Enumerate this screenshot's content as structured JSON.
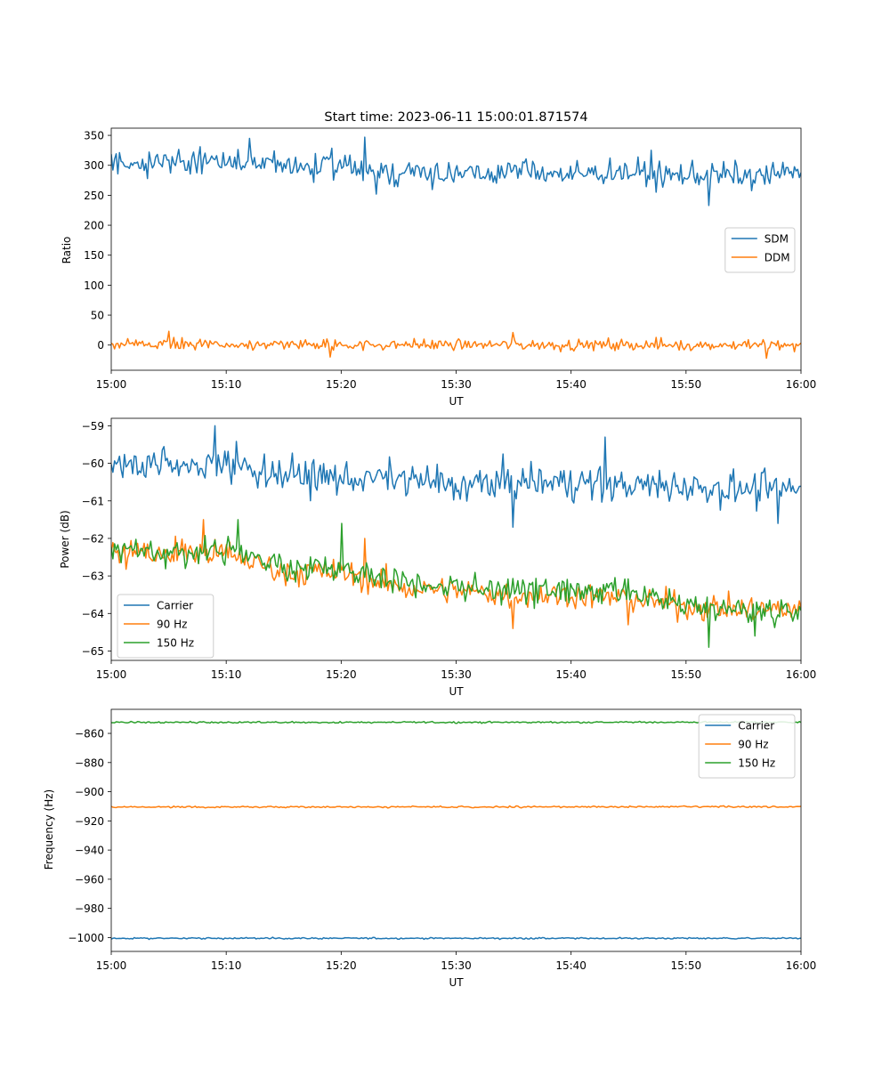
{
  "figure": {
    "title": "Start time: 2023-06-11 15:00:01.871574"
  },
  "colors": {
    "blue": "#1f77b4",
    "orange": "#ff7f0e",
    "green": "#2ca02c"
  },
  "chart_data": [
    {
      "type": "line",
      "title": "Start time: 2023-06-11 15:00:01.871574",
      "xlabel": "UT",
      "ylabel": "Ratio",
      "xlim": [
        "15:00",
        "16:00"
      ],
      "ylim": [
        -42,
        362
      ],
      "x_ticks": [
        "15:00",
        "15:10",
        "15:20",
        "15:30",
        "15:40",
        "15:50",
        "16:00"
      ],
      "y_ticks": [
        0,
        50,
        100,
        150,
        200,
        250,
        300,
        350
      ],
      "y_tick_labels": [
        "0",
        "50",
        "100",
        "150",
        "200",
        "250",
        "300",
        "350"
      ],
      "grid": false,
      "legend_position": "center-right",
      "series": [
        {
          "name": "SDM",
          "color": "#1f77b4",
          "anchor_x": [
            "15:00",
            "15:04",
            "15:08",
            "15:12",
            "15:16",
            "15:20",
            "15:24",
            "15:28",
            "15:32",
            "15:36",
            "15:40",
            "15:44",
            "15:48",
            "15:52",
            "15:56",
            "16:00"
          ],
          "anchor_y": [
            305,
            305,
            307,
            303,
            298,
            300,
            290,
            288,
            283,
            294,
            283,
            291,
            282,
            285,
            280,
            290
          ],
          "noise": 18,
          "spikes": [
            {
              "x": "15:12",
              "y": 345
            },
            {
              "x": "15:22",
              "y": 347
            },
            {
              "x": "15:52",
              "y": 233
            },
            {
              "x": "15:47",
              "y": 325
            },
            {
              "x": "15:23",
              "y": 252
            }
          ]
        },
        {
          "name": "DDM",
          "color": "#ff7f0e",
          "anchor_x": [
            "15:00",
            "16:00"
          ],
          "anchor_y": [
            1,
            0
          ],
          "noise": 8,
          "spikes": [
            {
              "x": "15:05",
              "y": 23
            },
            {
              "x": "15:57",
              "y": -22
            },
            {
              "x": "15:19",
              "y": -20
            },
            {
              "x": "15:35",
              "y": 21
            }
          ]
        }
      ]
    },
    {
      "type": "line",
      "title": "",
      "xlabel": "UT",
      "ylabel": "Power (dB)",
      "xlim": [
        "15:00",
        "16:00"
      ],
      "ylim": [
        -65.25,
        -58.8
      ],
      "x_ticks": [
        "15:00",
        "15:10",
        "15:20",
        "15:30",
        "15:40",
        "15:50",
        "16:00"
      ],
      "y_ticks": [
        -65,
        -64,
        -63,
        -62,
        -61,
        -60,
        -59
      ],
      "y_tick_labels": [
        "−65",
        "−64",
        "−63",
        "−62",
        "−61",
        "−60",
        "−59"
      ],
      "grid": false,
      "legend_position": "lower-left",
      "series": [
        {
          "name": "Carrier",
          "color": "#1f77b4",
          "anchor_x": [
            "15:00",
            "15:05",
            "15:10",
            "15:15",
            "15:20",
            "15:25",
            "15:30",
            "15:35",
            "15:40",
            "15:45",
            "15:50",
            "15:55",
            "16:00"
          ],
          "anchor_y": [
            -60.1,
            -60.0,
            -60.0,
            -60.3,
            -60.4,
            -60.4,
            -60.6,
            -60.5,
            -60.5,
            -60.6,
            -60.6,
            -60.7,
            -60.7
          ],
          "noise": 0.38,
          "spikes": [
            {
              "x": "15:09",
              "y": -59.0
            },
            {
              "x": "15:35",
              "y": -61.7
            },
            {
              "x": "15:43",
              "y": -59.3
            },
            {
              "x": "15:58",
              "y": -61.6
            }
          ]
        },
        {
          "name": "90 Hz",
          "color": "#ff7f0e",
          "anchor_x": [
            "15:00",
            "15:05",
            "15:10",
            "15:15",
            "15:20",
            "15:25",
            "15:30",
            "15:35",
            "15:40",
            "15:45",
            "15:50",
            "15:55",
            "16:00"
          ],
          "anchor_y": [
            -62.4,
            -62.4,
            -62.4,
            -62.9,
            -62.9,
            -63.3,
            -63.4,
            -63.5,
            -63.5,
            -63.6,
            -63.8,
            -63.9,
            -63.9
          ],
          "noise": 0.3,
          "spikes": [
            {
              "x": "15:08",
              "y": -61.5
            },
            {
              "x": "15:22",
              "y": -62.0
            },
            {
              "x": "15:35",
              "y": -64.4
            },
            {
              "x": "15:45",
              "y": -64.3
            }
          ]
        },
        {
          "name": "150 Hz",
          "color": "#2ca02c",
          "anchor_x": [
            "15:00",
            "15:05",
            "15:10",
            "15:15",
            "15:20",
            "15:25",
            "15:30",
            "15:35",
            "15:40",
            "15:45",
            "15:50",
            "15:55",
            "16:00"
          ],
          "anchor_y": [
            -62.3,
            -62.4,
            -62.3,
            -62.8,
            -62.8,
            -63.1,
            -63.3,
            -63.4,
            -63.4,
            -63.5,
            -63.8,
            -63.9,
            -63.9
          ],
          "noise": 0.3,
          "spikes": [
            {
              "x": "15:11",
              "y": -61.5
            },
            {
              "x": "15:20",
              "y": -61.6
            },
            {
              "x": "15:52",
              "y": -64.9
            },
            {
              "x": "15:56",
              "y": -64.6
            }
          ]
        }
      ]
    },
    {
      "type": "line",
      "title": "",
      "xlabel": "UT",
      "ylabel": "Frequency (Hz)",
      "xlim": [
        "15:00",
        "16:00"
      ],
      "ylim": [
        -1009.5,
        -843.5
      ],
      "x_ticks": [
        "15:00",
        "15:10",
        "15:20",
        "15:30",
        "15:40",
        "15:50",
        "16:00"
      ],
      "y_ticks": [
        -1000,
        -980,
        -960,
        -940,
        -920,
        -900,
        -880,
        -860
      ],
      "y_tick_labels": [
        "−1000",
        "−980",
        "−960",
        "−940",
        "−920",
        "−900",
        "−880",
        "−860"
      ],
      "grid": false,
      "legend_position": "upper-right",
      "series": [
        {
          "name": "Carrier",
          "color": "#1f77b4",
          "anchor_x": [
            "15:00",
            "16:00"
          ],
          "anchor_y": [
            -1000.5,
            -1000.5
          ],
          "noise": 0.45,
          "spikes": []
        },
        {
          "name": "90 Hz",
          "color": "#ff7f0e",
          "anchor_x": [
            "15:00",
            "16:00"
          ],
          "anchor_y": [
            -910.5,
            -910.3
          ],
          "noise": 0.45,
          "spikes": []
        },
        {
          "name": "150 Hz",
          "color": "#2ca02c",
          "anchor_x": [
            "15:00",
            "16:00"
          ],
          "anchor_y": [
            -852.5,
            -852.3
          ],
          "noise": 0.45,
          "spikes": []
        }
      ]
    }
  ]
}
